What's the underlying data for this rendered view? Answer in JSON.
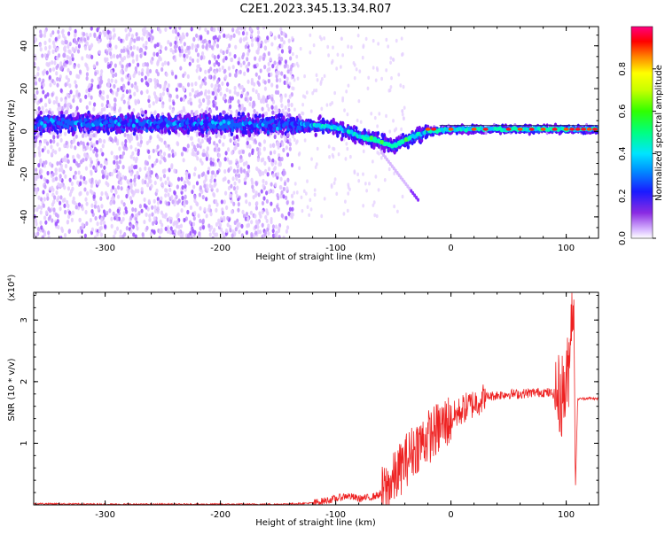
{
  "title": "C2E1.2023.345.13.34.R07",
  "chart_data": [
    {
      "type": "heatmap",
      "xlabel": "Height of straight line (km)",
      "ylabel": "Frequency (Hz)",
      "xlim": [
        -362,
        128
      ],
      "ylim": [
        -50,
        49
      ],
      "xticks": [
        -300,
        -200,
        -100,
        0,
        100
      ],
      "yticks": [
        -40,
        -20,
        0,
        20,
        40
      ],
      "colorbar": {
        "label": "Normalized spectral amplitude",
        "range": [
          0,
          1
        ],
        "ticks": [
          "0.0",
          "0.2",
          "0.4",
          "0.6",
          "0.8"
        ],
        "colors": [
          "#ffffff",
          "#b57bff",
          "#6400ff",
          "#2020ff",
          "#00a0ff",
          "#00ffd0",
          "#00ff40",
          "#a0ff00",
          "#ffff00",
          "#ff8000",
          "#ff0000",
          "#ff0080"
        ]
      },
      "ridge": {
        "description_points_x": [
          -360,
          -150,
          -130,
          -100,
          -80,
          -60,
          -50,
          -40,
          -30,
          -20,
          0,
          50,
          100,
          128
        ],
        "description_points_y": [
          4,
          3,
          3,
          2,
          -2,
          -5,
          -7,
          -4,
          -2,
          0,
          1,
          1,
          1,
          1
        ]
      }
    },
    {
      "type": "line",
      "xlabel": "Height of straight line (km)",
      "ylabel": "SNR (10 * v/v)",
      "yunit": "(x10⁴)",
      "xlim": [
        -362,
        128
      ],
      "ylim": [
        0,
        3.45
      ],
      "xticks": [
        -300,
        -200,
        -100,
        0,
        100
      ],
      "yticks": [
        1,
        2,
        3
      ],
      "color": "#ee2222",
      "series": [
        {
          "x": [
            -362,
            -300,
            -200,
            -150,
            -120,
            -100,
            -90,
            -80,
            -70,
            -60,
            -50,
            -40,
            -30,
            -20,
            -10,
            0,
            10,
            20,
            30,
            40,
            50,
            60,
            70,
            80,
            90,
            95,
            100,
            103,
            106,
            108,
            110,
            120,
            128
          ],
          "y": [
            0.02,
            0.01,
            0.01,
            0.01,
            0.03,
            0.1,
            0.15,
            0.1,
            0.12,
            0.18,
            0.4,
            0.7,
            0.95,
            1.1,
            1.25,
            1.4,
            1.55,
            1.65,
            1.75,
            1.78,
            1.8,
            1.8,
            1.82,
            1.83,
            1.8,
            1.75,
            1.9,
            2.4,
            3.3,
            0.3,
            1.72,
            1.73,
            1.72
          ]
        }
      ]
    }
  ]
}
